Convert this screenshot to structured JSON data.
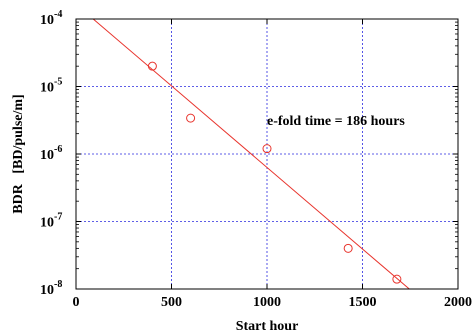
{
  "chart_data": {
    "type": "scatter",
    "xlabel": "Start hour",
    "ylabel": "BDR   [BD/pulse/m]",
    "xlim": [
      0,
      2000
    ],
    "ylim": [
      1e-08,
      0.0001
    ],
    "yscale": "log",
    "grid": true,
    "x_ticks": [
      0,
      500,
      1000,
      1500,
      2000
    ],
    "x_tick_labels": [
      "0",
      "500",
      "1000",
      "1500",
      "2000"
    ],
    "y_ticks": [
      1e-08,
      1e-07,
      1e-06,
      1e-05,
      0.0001
    ],
    "y_tick_labels": [
      {
        "base": "10",
        "exp": "-8"
      },
      {
        "base": "10",
        "exp": "-7"
      },
      {
        "base": "10",
        "exp": "-6"
      },
      {
        "base": "10",
        "exp": "-5"
      },
      {
        "base": "10",
        "exp": "-4"
      }
    ],
    "series": [
      {
        "marker": "open-circle",
        "color": "#e8332c",
        "x": [
          400,
          600,
          1000,
          1425,
          1680
        ],
        "y": [
          2e-05,
          3.4e-06,
          1.2e-06,
          4e-08,
          1.4e-08
        ]
      }
    ],
    "fit_line": {
      "color": "#e8332c",
      "x": [
        90,
        1745
      ],
      "y": [
        0.0001,
        1e-08
      ]
    },
    "annotations": [
      {
        "text": "e-fold time = 186 hours",
        "x": 1000,
        "y": 3.2e-06
      }
    ],
    "grid_color": "#2a2ae0",
    "axis_color": "#000000"
  }
}
